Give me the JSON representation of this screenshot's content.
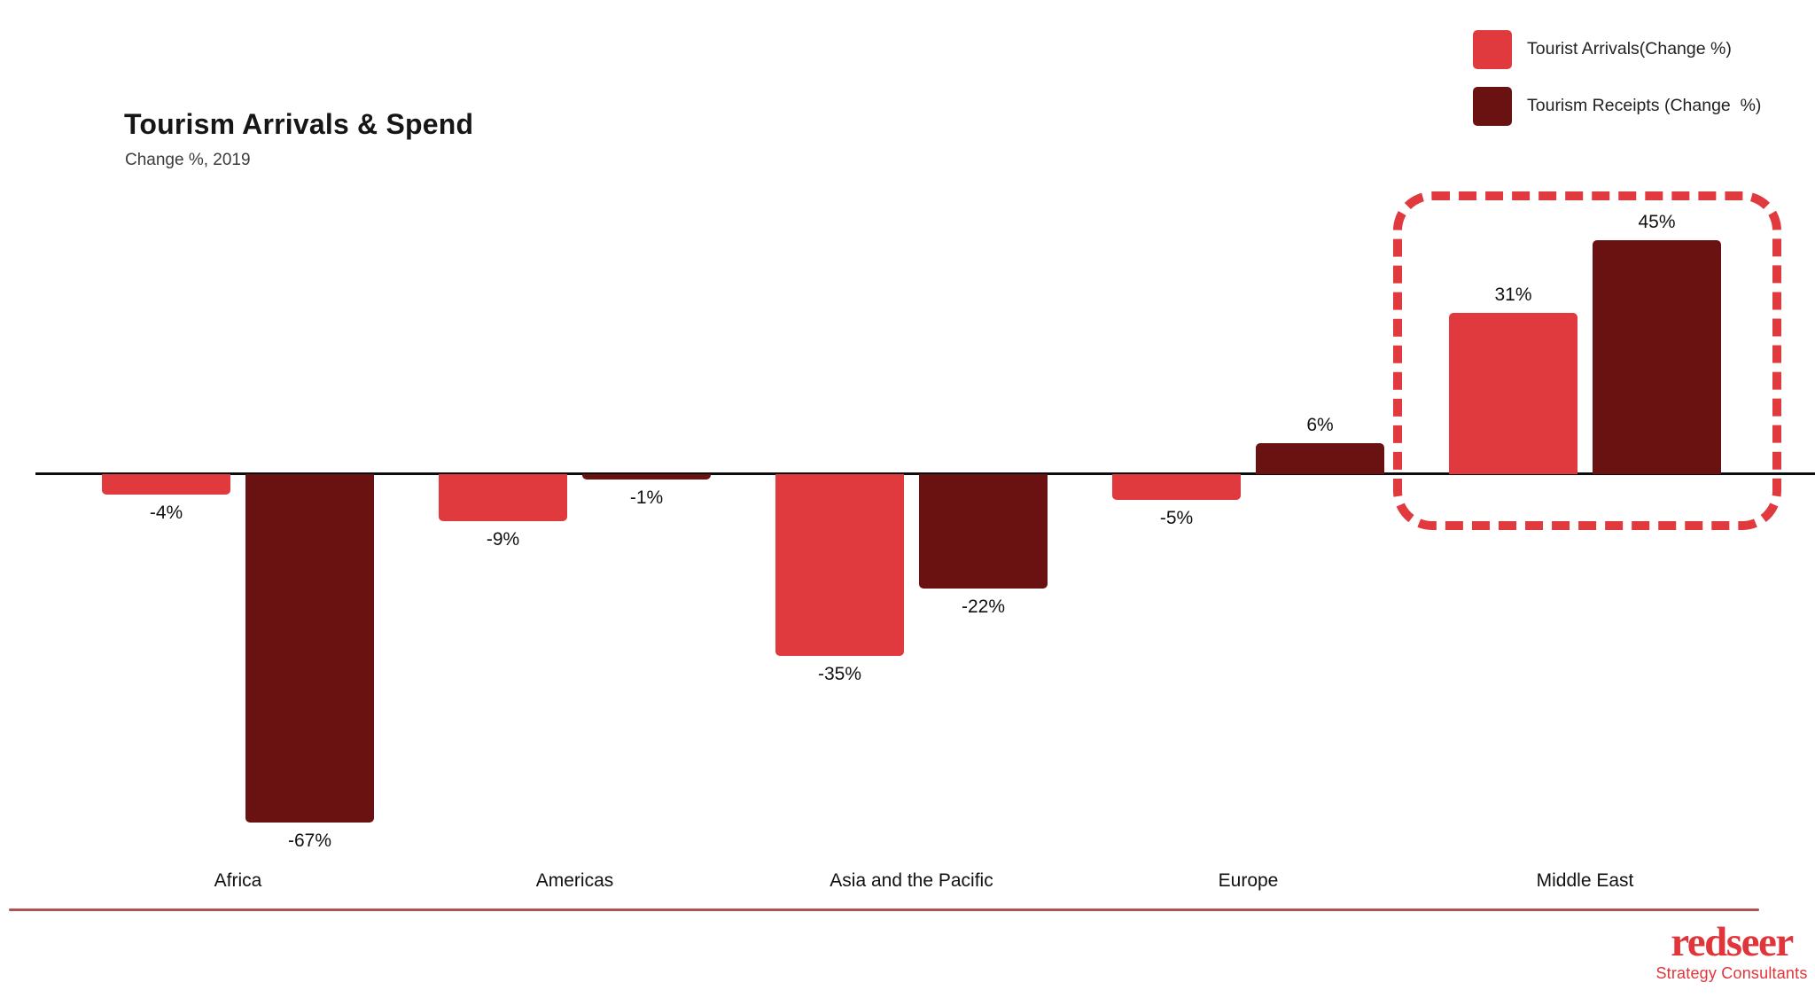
{
  "title": "Tourism Arrivals & Spend",
  "subtitle": "Change %, 2019",
  "legend": [
    {
      "label": "Tourist Arrivals(Change %)",
      "color": "#e0393e",
      "icon": "red-square-swatch"
    },
    {
      "label": "Tourism Receipts (Change  %)",
      "color": "#6a1112",
      "icon": "maroon-square-swatch"
    }
  ],
  "chart_data": {
    "type": "bar",
    "title": "Tourism Arrivals & Spend",
    "subtitle": "Change %, 2019",
    "categories": [
      "Africa",
      "Americas",
      "Asia and the Pacific",
      "Europe",
      "Middle East"
    ],
    "series": [
      {
        "name": "Tourist Arrivals(Change %)",
        "color": "#e0393e",
        "values": [
          -4,
          -9,
          -35,
          -5,
          31
        ]
      },
      {
        "name": "Tourism Receipts (Change  %)",
        "color": "#6a1112",
        "values": [
          -67,
          -1,
          -22,
          6,
          45
        ]
      }
    ],
    "value_labels": [
      [
        "-4%",
        "-9%",
        "-35%",
        "-5%",
        "31%"
      ],
      [
        "-67%",
        "-1%",
        "-22%",
        "6%",
        "45%"
      ]
    ],
    "xlabel": "",
    "ylabel": "",
    "ylim": [
      -67,
      45
    ],
    "grid": false,
    "zero_line": true,
    "legend_position": "top-right",
    "highlight": {
      "category": "Middle East",
      "style": "red-dashed-rounded-box"
    }
  },
  "footer": {
    "logo_text": "redseer",
    "logo_subtext": "Strategy Consultants"
  },
  "colors": {
    "arrivals_red": "#e0393e",
    "receipts_maroon": "#6a1112",
    "axis_black": "#0d0d0d",
    "highlight_dash_red": "#e0393e",
    "footer_line_red": "#b05152",
    "logo_red": "#e0363b"
  }
}
